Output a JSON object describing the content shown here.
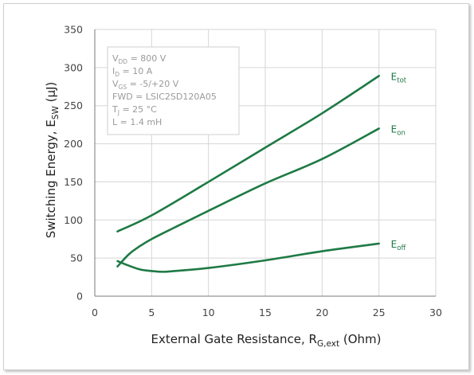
{
  "colors": {
    "series": "#1e7a45",
    "grid": "#d6d6d6",
    "axis": "#7a7a7a",
    "note_text": "#9a9a9a"
  },
  "chart_data": {
    "type": "line",
    "title": "",
    "xlabel": {
      "main": "External Gate Resistance, R",
      "sub": "G,ext",
      "suffix": " (Ohm)"
    },
    "ylabel": {
      "main": "Switching Energy, E",
      "sub": "SW",
      "suffix": " (µJ)"
    },
    "xlim": [
      0,
      30
    ],
    "ylim": [
      0,
      350
    ],
    "xticks": [
      0,
      5,
      10,
      15,
      20,
      25,
      30
    ],
    "yticks": [
      0,
      50,
      100,
      150,
      200,
      250,
      300,
      350
    ],
    "grid": true,
    "series": [
      {
        "label_main": "E",
        "label_sub": "tot",
        "x": [
          2,
          5,
          10,
          15,
          20,
          25
        ],
        "y": [
          85,
          106,
          150,
          195,
          240,
          289
        ]
      },
      {
        "label_main": "E",
        "label_sub": "on",
        "x": [
          2,
          3,
          4,
          5,
          7,
          10,
          15,
          20,
          25
        ],
        "y": [
          39,
          55,
          66,
          75,
          90,
          112,
          148,
          180,
          220
        ]
      },
      {
        "label_main": "E",
        "label_sub": "off",
        "x": [
          2,
          3,
          4,
          5,
          6,
          7,
          10,
          15,
          20,
          25
        ],
        "y": [
          46,
          40,
          35,
          33,
          32,
          33,
          37,
          47,
          59,
          69
        ]
      }
    ],
    "annotation": [
      {
        "main": "V",
        "sub": "DD",
        "rest": " = 800 V"
      },
      {
        "main": "I",
        "sub": "D",
        "rest": " = 10 A"
      },
      {
        "main": "V",
        "sub": "GS",
        "rest": " = -5/+20 V"
      },
      {
        "main": "FWD = LSIC2SD120A05",
        "sub": "",
        "rest": ""
      },
      {
        "main": "T",
        "sub": "J",
        "rest": " = 25 °C"
      },
      {
        "main": "L = 1.4 mH",
        "sub": "",
        "rest": ""
      }
    ]
  }
}
